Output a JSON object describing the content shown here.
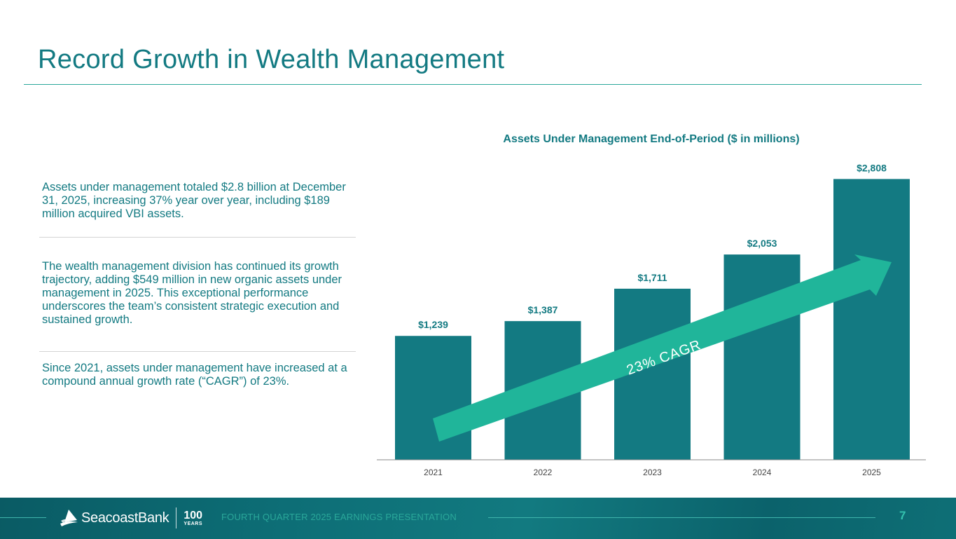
{
  "page": {
    "title": "Record Growth in Wealth Management"
  },
  "bullets": [
    "Assets under management totaled $2.8 billion at December 31, 2025, increasing 37% year over year, including $189 million acquired VBI assets.",
    "The wealth management division has continued its growth trajectory, adding $549 million in new organic assets under management in 2025. This exceptional performance underscores the team’s consistent strategic execution and sustained growth.",
    "Since 2021, assets under management have increased at a compound annual growth rate (“CAGR”) of 23%."
  ],
  "chart_data": {
    "type": "bar",
    "title": "Assets Under Management End-of-Period ($ in millions)",
    "categories": [
      "2021",
      "2022",
      "2023",
      "2024",
      "2025"
    ],
    "values": [
      1239,
      1387,
      1711,
      2053,
      2808
    ],
    "value_labels": [
      "$1,239",
      "$1,387",
      "$1,711",
      "$2,053",
      "$2,808"
    ],
    "ylim": [
      0,
      3000
    ],
    "annotation": "23% CAGR",
    "grid": false,
    "bar_color": "#137a82",
    "arrow_color": "#20b59a"
  },
  "footer": {
    "brand": "SeacoastBank",
    "years_number": "100",
    "years_label": "YEARS",
    "presentation": "FOURTH QUARTER 2025 EARNINGS PRESENTATION",
    "page_number": "7"
  }
}
